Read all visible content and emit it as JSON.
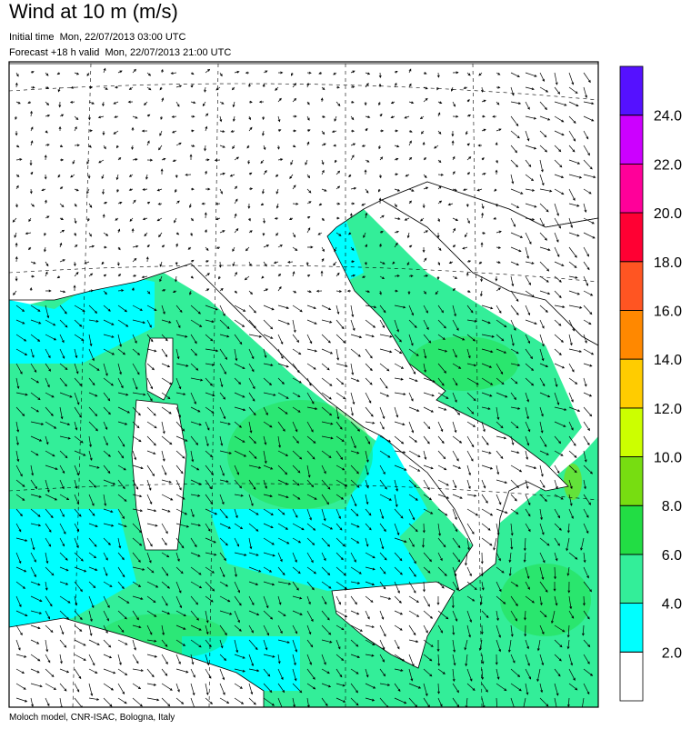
{
  "header": {
    "title": "Wind at 10 m (m/s)",
    "initial_time": "Initial time  Mon, 22/07/2013 03:00 UTC",
    "forecast": "Forecast +18 h valid  Mon, 22/07/2013 21:00 UTC"
  },
  "colorbar": {
    "colors": [
      "#ffffff",
      "#00ffff",
      "#33ee99",
      "#22dd44",
      "#77dd11",
      "#ccff00",
      "#ffcc00",
      "#ff8800",
      "#ff5522",
      "#ff0033",
      "#ff0099",
      "#cc00ff",
      "#5511ff"
    ],
    "ticks": [
      {
        "value": 2,
        "label": "2.0"
      },
      {
        "value": 4,
        "label": "4.0"
      },
      {
        "value": 6,
        "label": "6.0"
      },
      {
        "value": 8,
        "label": "8.0"
      },
      {
        "value": 10,
        "label": "10.0"
      },
      {
        "value": 12,
        "label": "12.0"
      },
      {
        "value": 14,
        "label": "14.0"
      },
      {
        "value": 16,
        "label": "16.0"
      },
      {
        "value": 18,
        "label": "18.0"
      },
      {
        "value": 20,
        "label": "20.0"
      },
      {
        "value": 22,
        "label": "22.0"
      },
      {
        "value": 24,
        "label": "24.0"
      }
    ]
  },
  "footer": "Moloch model, CNR-ISAC, Bologna, Italy"
}
